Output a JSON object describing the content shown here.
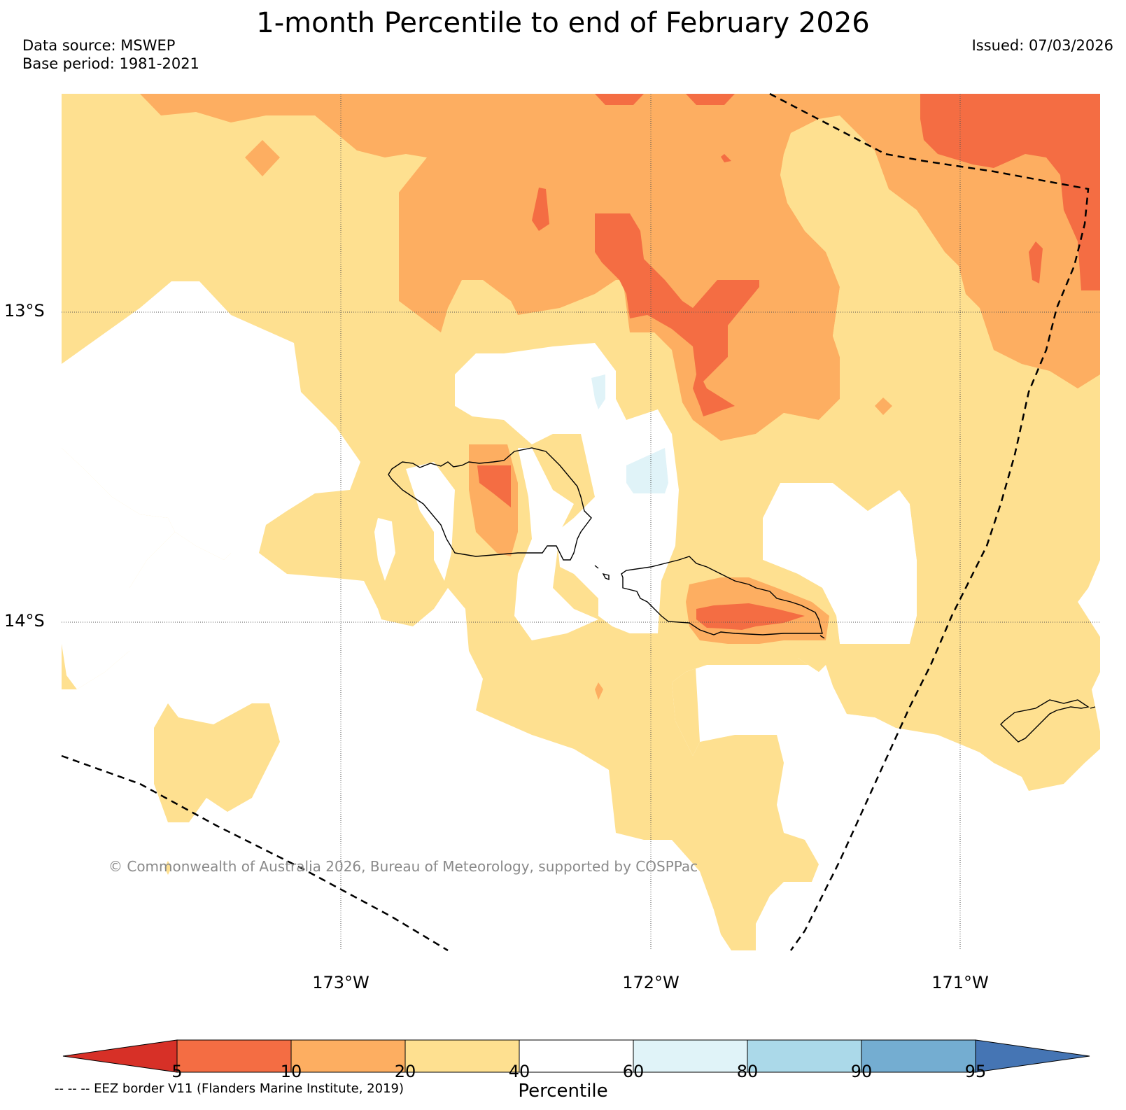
{
  "title": "1-month Percentile to end of February 2026",
  "data_source": "Data source: MSWEP",
  "base_period": "Base period: 1981-2021",
  "issued": "Issued: 07/03/2026",
  "copyright": "© Commonwealth of Australia 2026, Bureau of Meteorology, supported by COSPPac",
  "lat_labels": [
    "13°S",
    "14°S"
  ],
  "lon_labels": [
    "173°W",
    "172°W",
    "171°W"
  ],
  "colorbar": {
    "title": "Percentile",
    "ticks": [
      "5",
      "10",
      "20",
      "40",
      "60",
      "80",
      "90",
      "95"
    ],
    "colors": [
      "#d73027",
      "#f46d43",
      "#fdae61",
      "#fee090",
      "#ffffff",
      "#e0f3f8",
      "#abd9e9",
      "#74add1",
      "#4575b4"
    ]
  },
  "eez_note": "-- -- -- EEZ border V11 (Flanders Marine Institute, 2019)",
  "colors": {
    "p5_10": "#f46d43",
    "p10_20": "#fdae61",
    "p20_40": "#fee090",
    "p60_80": "#e0f3f8"
  }
}
